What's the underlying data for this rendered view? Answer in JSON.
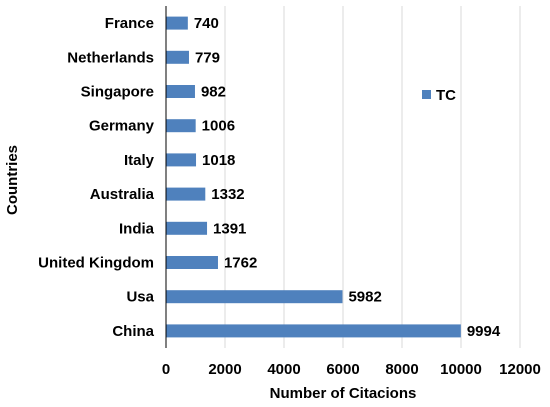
{
  "chart_data": {
    "type": "bar",
    "orientation": "horizontal",
    "categories": [
      "France",
      "Netherlands",
      "Singapore",
      "Germany",
      "Italy",
      "Australia",
      "India",
      "United Kingdom",
      "Usa",
      "China"
    ],
    "series": [
      {
        "name": "TC",
        "values": [
          740,
          779,
          982,
          1006,
          1018,
          1332,
          1391,
          1762,
          5982,
          9994
        ]
      }
    ],
    "xlabel": "Number of Citacions",
    "ylabel": "Countries",
    "xlim": [
      0,
      12000
    ],
    "xticks": [
      "0",
      "2000",
      "4000",
      "6000",
      "8000",
      "10000",
      "12000"
    ],
    "grid": "vertical",
    "legend_position": "upper-right",
    "bar_color": "#4F81BD"
  }
}
